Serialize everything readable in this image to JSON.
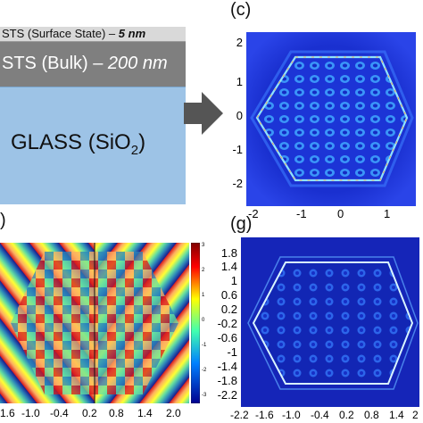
{
  "layers": {
    "surface_label": "STS (Surface State) – ",
    "surface_thickness": "5 nm",
    "bulk_label": "STS (Bulk) – ",
    "bulk_thickness": "200 nm",
    "glass_label": "GLASS (SiO",
    "glass_sub": "2",
    "glass_close": ")"
  },
  "panels": {
    "c": {
      "label": "(c)",
      "y_ticks": [
        "2",
        "1",
        "0",
        "-1",
        "-2"
      ],
      "x_ticks": [
        "-2",
        "-1",
        "0",
        "1"
      ]
    },
    "f": {
      "label": ")",
      "x_ticks": [
        "1.6",
        "-1.0",
        "-0.4",
        "0.2",
        "0.8",
        "1.4",
        "2.0"
      ],
      "colorbar_ticks_small": [
        "3",
        "2",
        "1",
        "0",
        "-1",
        "-2",
        "-3"
      ]
    },
    "g": {
      "label": "(g)",
      "colorbar_ticks": [
        "1.8",
        "1.4",
        "1",
        "0.6",
        "0.2",
        "-0.2",
        "-0.6",
        "-1",
        "-1.4",
        "-1.8",
        "-2.2"
      ],
      "x_ticks": [
        "-2.2",
        "-1.6",
        "-1.0",
        "-0.4",
        "0.2",
        "0.8",
        "1.4",
        "2"
      ]
    }
  },
  "colors": {
    "surface_layer": "#d9d9d9",
    "bulk_layer": "#7f7f7f",
    "glass_layer": "#9dc3e6",
    "arrow": "#555555",
    "field_background": "#1525b8"
  }
}
